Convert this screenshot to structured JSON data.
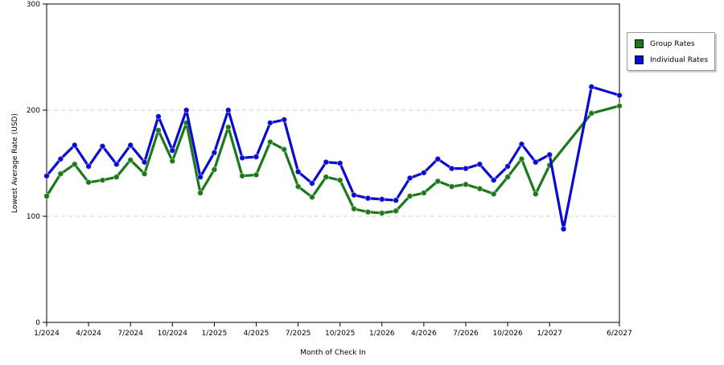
{
  "chart_data": {
    "type": "line",
    "title": "",
    "xlabel": "Month of Check In",
    "ylabel": "Lowest Average Rate (USD)",
    "ylim": [
      0,
      300
    ],
    "yticks": [
      0,
      100,
      200,
      300
    ],
    "grid": "horizontal dashed",
    "legend_position": "right",
    "x_tick_labels": [
      "1/2024",
      "4/2024",
      "7/2024",
      "10/2024",
      "1/2025",
      "4/2025",
      "7/2025",
      "10/2025",
      "1/2026",
      "4/2026",
      "7/2026",
      "10/2026",
      "1/2027",
      "6/2027"
    ],
    "x": [
      "1/2024",
      "2/2024",
      "3/2024",
      "4/2024",
      "5/2024",
      "6/2024",
      "7/2024",
      "8/2024",
      "9/2024",
      "10/2024",
      "11/2024",
      "12/2024",
      "1/2025",
      "2/2025",
      "3/2025",
      "4/2025",
      "5/2025",
      "6/2025",
      "7/2025",
      "8/2025",
      "9/2025",
      "10/2025",
      "11/2025",
      "12/2025",
      "1/2026",
      "2/2026",
      "3/2026",
      "4/2026",
      "5/2026",
      "6/2026",
      "7/2026",
      "8/2026",
      "9/2026",
      "10/2026",
      "11/2026",
      "12/2026",
      "1/2027",
      "2/2027",
      "3/2027",
      "4/2027",
      "5/2027",
      "6/2027"
    ],
    "series": [
      {
        "name": "Group Rates",
        "color": "#1a7a1a",
        "values": [
          119,
          140,
          149,
          132,
          134,
          137,
          153,
          140,
          181,
          152,
          188,
          122,
          144,
          184,
          138,
          139,
          170,
          163,
          128,
          118,
          137,
          134,
          107,
          104,
          103,
          105,
          119,
          122,
          133,
          128,
          130,
          126,
          121,
          137,
          154,
          121,
          148,
          null,
          null,
          null,
          null,
          null
        ],
        "tail": [
          {
            "x": "4/2027",
            "y": 197
          },
          {
            "x": "6/2027",
            "y": 204
          }
        ]
      },
      {
        "name": "Individual Rates",
        "color": "#0a0ad0",
        "values": [
          138,
          154,
          167,
          147,
          166,
          149,
          167,
          151,
          194,
          162,
          200,
          137,
          160,
          200,
          155,
          156,
          188,
          191,
          142,
          131,
          151,
          150,
          120,
          117,
          116,
          115,
          136,
          141,
          154,
          145,
          145,
          149,
          134,
          147,
          168,
          151,
          158,
          88,
          null,
          null,
          null,
          null
        ],
        "tail": [
          {
            "x": "4/2027",
            "y": 222
          },
          {
            "x": "6/2027",
            "y": 214
          }
        ]
      }
    ]
  },
  "legend": {
    "items": [
      {
        "label": "Group Rates",
        "color": "#1a7a1a"
      },
      {
        "label": "Individual Rates",
        "color": "#0a0ad0"
      }
    ]
  }
}
